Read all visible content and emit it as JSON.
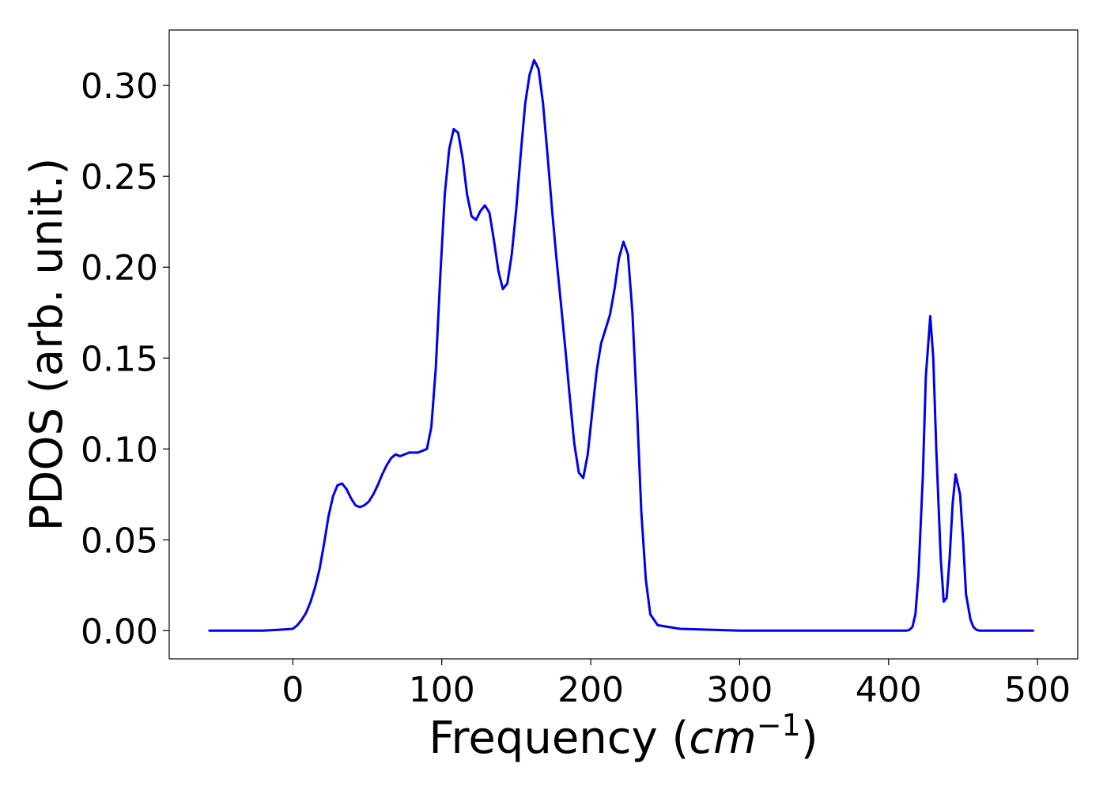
{
  "chart_data": {
    "type": "line",
    "title": "",
    "xlabel": "Frequency (",
    "xlabel_math": "cm",
    "xlabel_exponent": "−1",
    "xlabel_close": ")",
    "ylabel": "PDOS (arb. unit.)",
    "xlim": [
      -83,
      527
    ],
    "ylim": [
      -0.0155,
      0.3305
    ],
    "grid": false,
    "legend": "none",
    "line_color": "#0000ee",
    "x_ticks": [
      0,
      100,
      200,
      300,
      400,
      500
    ],
    "x_tick_labels": [
      "0",
      "100",
      "200",
      "300",
      "400",
      "500"
    ],
    "y_ticks": [
      0.0,
      0.05,
      0.1,
      0.15,
      0.2,
      0.25,
      0.3
    ],
    "y_tick_labels": [
      "0.00",
      "0.05",
      "0.10",
      "0.15",
      "0.20",
      "0.25",
      "0.30"
    ],
    "series": [
      {
        "x": [
          -56,
          -20,
          -10,
          0,
          3,
          6,
          9,
          12,
          15,
          18,
          21,
          24,
          27,
          30,
          33,
          36,
          39,
          42,
          45,
          48,
          51,
          54,
          57,
          60,
          63,
          66,
          69,
          72,
          75,
          78,
          81,
          84,
          87,
          90,
          93,
          96,
          99,
          102,
          105,
          108,
          111,
          114,
          117,
          120,
          123,
          126,
          129,
          132,
          135,
          138,
          141,
          144,
          147,
          150,
          153,
          156,
          159,
          162,
          165,
          168,
          171,
          174,
          177,
          180,
          183,
          186,
          189,
          192,
          195,
          198,
          201,
          204,
          207,
          210,
          213,
          216,
          219,
          222,
          225,
          228,
          231,
          234,
          237,
          240,
          245,
          260,
          300,
          350,
          400,
          410,
          412,
          414,
          416,
          418,
          420,
          423,
          425,
          428,
          430,
          432,
          435,
          437,
          439,
          441,
          443,
          445,
          448,
          450,
          452,
          455,
          457,
          459,
          461,
          463,
          466,
          470,
          497
        ],
        "y": [
          0.0,
          0.0,
          0.0005,
          0.001,
          0.003,
          0.006,
          0.01,
          0.016,
          0.024,
          0.034,
          0.048,
          0.063,
          0.074,
          0.08,
          0.081,
          0.078,
          0.073,
          0.069,
          0.068,
          0.069,
          0.071,
          0.075,
          0.08,
          0.086,
          0.091,
          0.095,
          0.097,
          0.096,
          0.097,
          0.098,
          0.098,
          0.098,
          0.099,
          0.1,
          0.112,
          0.145,
          0.195,
          0.24,
          0.265,
          0.276,
          0.274,
          0.26,
          0.24,
          0.228,
          0.226,
          0.231,
          0.234,
          0.23,
          0.215,
          0.198,
          0.188,
          0.191,
          0.207,
          0.232,
          0.262,
          0.29,
          0.306,
          0.314,
          0.309,
          0.29,
          0.262,
          0.232,
          0.205,
          0.18,
          0.155,
          0.128,
          0.103,
          0.087,
          0.084,
          0.097,
          0.12,
          0.143,
          0.158,
          0.166,
          0.174,
          0.188,
          0.205,
          0.214,
          0.207,
          0.175,
          0.123,
          0.065,
          0.028,
          0.009,
          0.003,
          0.001,
          0.0,
          0.0,
          0.0,
          0.0,
          0.0,
          0.0005,
          0.002,
          0.009,
          0.03,
          0.085,
          0.14,
          0.173,
          0.15,
          0.1,
          0.04,
          0.016,
          0.018,
          0.04,
          0.07,
          0.086,
          0.075,
          0.05,
          0.02,
          0.006,
          0.002,
          0.0005,
          0.0,
          0.0,
          0.0,
          0.0,
          0.0
        ]
      }
    ]
  }
}
